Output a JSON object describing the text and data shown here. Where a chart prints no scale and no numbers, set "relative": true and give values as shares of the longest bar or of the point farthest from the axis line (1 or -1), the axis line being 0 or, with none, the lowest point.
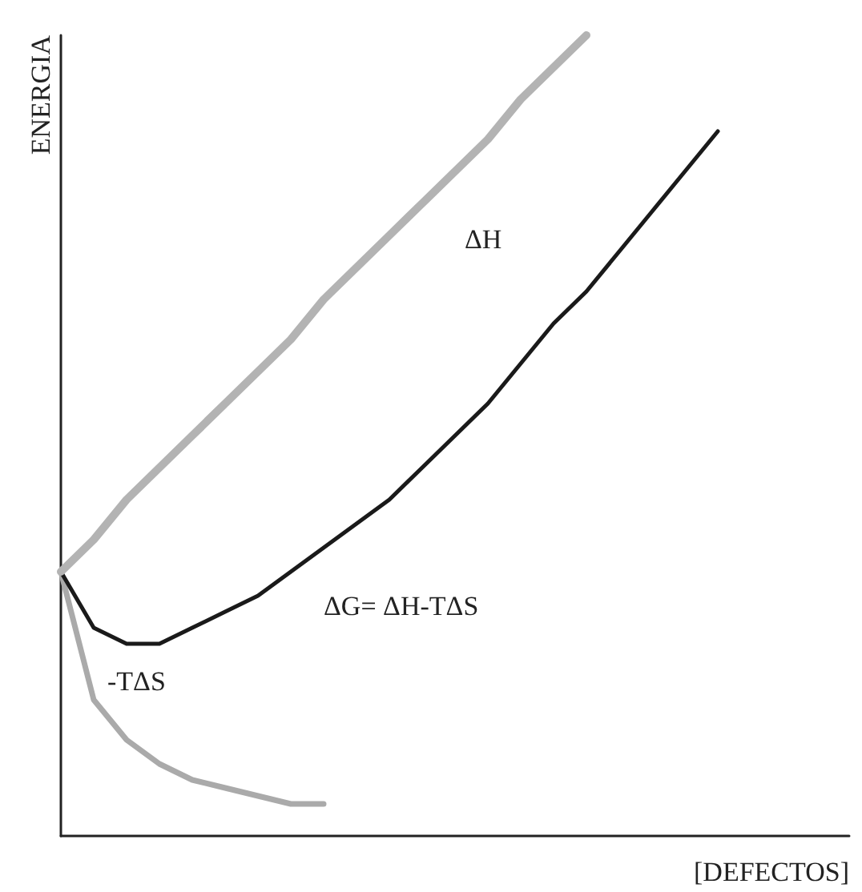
{
  "chart_data": {
    "type": "line",
    "relative": true,
    "xlabel": "[DEFECTOS]",
    "ylabel": "ENERGIA",
    "categories": [
      null,
      null,
      null,
      null,
      null,
      null,
      null,
      null,
      null,
      null,
      null,
      null,
      null,
      null,
      null,
      null,
      null,
      null,
      null,
      null,
      null,
      null,
      null,
      null,
      null
    ],
    "series": [
      {
        "name": "ΔH",
        "color": "#b3b3b3",
        "values": [
          0.33,
          0.37,
          0.42,
          0.46,
          0.5,
          0.54,
          0.58,
          0.62,
          0.67,
          0.71,
          0.75,
          0.79,
          0.83,
          0.87,
          0.92,
          0.96,
          1.0,
          null,
          null,
          null,
          null,
          null,
          null,
          null,
          null
        ]
      },
      {
        "name": "ΔG= ΔH-TΔS",
        "color": "#1a1a1a",
        "values": [
          0.33,
          0.26,
          0.24,
          0.24,
          0.26,
          0.28,
          0.3,
          0.33,
          0.36,
          0.39,
          0.42,
          0.46,
          0.5,
          0.54,
          0.59,
          0.64,
          0.68,
          0.73,
          0.78,
          0.83,
          0.88,
          null,
          null,
          null,
          null
        ]
      },
      {
        "name": "-TΔS",
        "color": "#aaaaaa",
        "values": [
          0.33,
          0.17,
          0.12,
          0.09,
          0.07,
          0.06,
          0.05,
          0.04,
          0.04,
          null,
          null,
          null,
          null,
          null,
          null,
          null,
          null,
          null,
          null,
          null,
          null,
          null,
          null,
          null,
          null
        ]
      }
    ],
    "legend": false,
    "grid": false,
    "marker": "none",
    "line_style": "solid"
  }
}
